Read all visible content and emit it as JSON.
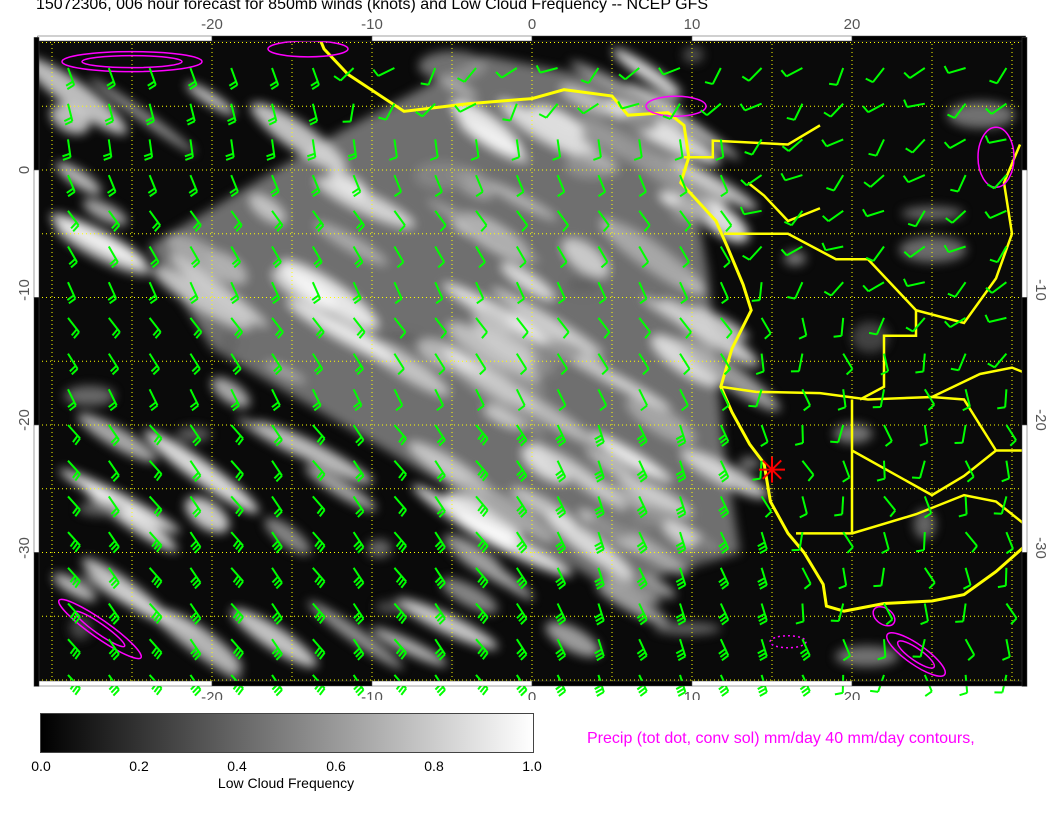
{
  "title": "15072306, 006 hour forecast for 850mb winds (knots) and Low Cloud Frequency -- NCEP GFS",
  "map": {
    "lon_ticks": [
      "-20",
      "-10",
      "0",
      "10",
      "20"
    ],
    "lat_ticks": [
      "0",
      "-10",
      "-20",
      "-30"
    ],
    "marker": {
      "type": "red-star",
      "lon": 15,
      "lat": -23.5,
      "color": "#ff0000"
    },
    "colors": {
      "coast": "#ffff00",
      "wind_barbs": "#00ff00",
      "precip_contours": "#ff00ff",
      "grid": "#ffff00"
    }
  },
  "colorbar": {
    "labels": [
      "0.0",
      "0.2",
      "0.4",
      "0.6",
      "0.8",
      "1.0"
    ],
    "title": "Low Cloud Frequency",
    "range": [
      0,
      1
    ],
    "colors": [
      "#000000",
      "#ffffff"
    ]
  },
  "precip_label": "Precip (tot dot, conv sol) mm/day 40 mm/day contours,"
}
